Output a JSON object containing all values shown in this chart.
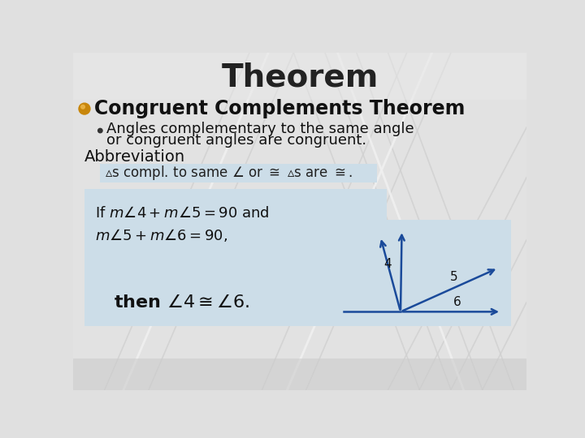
{
  "title": "Theorem",
  "title_fontsize": 28,
  "title_fontweight": "bold",
  "title_color": "#222222",
  "bg_color": "#e0e0e0",
  "heading": "Congruent Complements Theorem",
  "heading_fontsize": 17,
  "heading_color": "#111111",
  "bullet_color": "#111111",
  "bullet_text_line1": "Angles complementary to the same angle",
  "bullet_text_line2": "or congruent angles are congruent.",
  "bullet_fontsize": 13,
  "abbrev_label": "Abbreviation",
  "abbrev_fontsize": 14,
  "abbrev_color": "#111111",
  "abbrev_box_color": "#ccdde8",
  "formula_box_color": "#ccdde8",
  "formula_fontsize": 13,
  "diagram_arrow_color": "#1a4a9a",
  "line_color": "#cccccc",
  "gold_color": "#c8860a",
  "gold_highlight": "#e8b040"
}
